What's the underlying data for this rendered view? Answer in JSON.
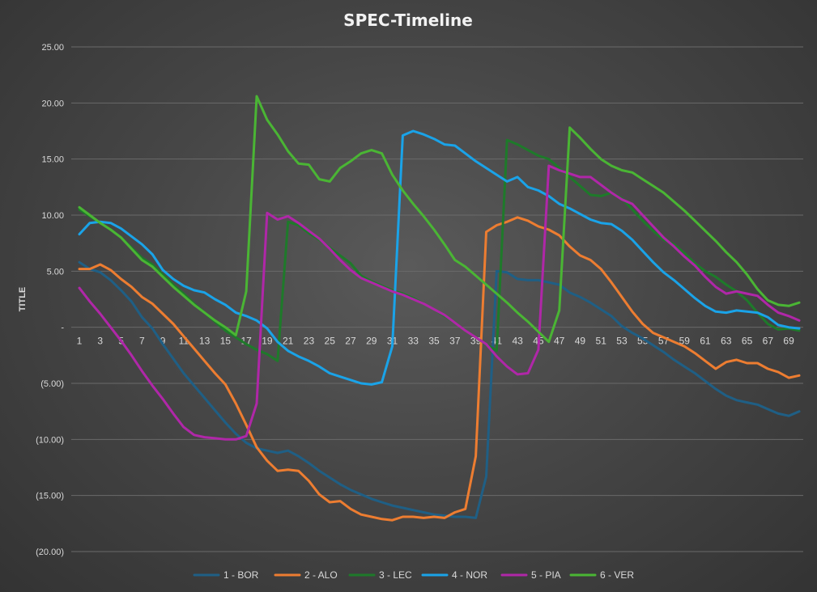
{
  "chart_data": {
    "type": "line",
    "title": "SPEC-Timeline",
    "ylabel": "TITLE",
    "xlabel": "",
    "ylim": [
      -20,
      25
    ],
    "ytick_values": [
      25,
      20,
      15,
      10,
      5,
      0,
      -5,
      -10,
      -15,
      -20
    ],
    "ytick_labels": [
      "25.00",
      "20.00",
      "15.00",
      "10.00",
      "5.00",
      "-",
      "(5.00)",
      "(10.00)",
      "(15.00)",
      "(20.00)"
    ],
    "x": [
      1,
      2,
      3,
      4,
      5,
      6,
      7,
      8,
      9,
      10,
      11,
      12,
      13,
      14,
      15,
      16,
      17,
      18,
      19,
      20,
      21,
      22,
      23,
      24,
      25,
      26,
      27,
      28,
      29,
      30,
      31,
      32,
      33,
      34,
      35,
      36,
      37,
      38,
      39,
      40,
      41,
      42,
      43,
      44,
      45,
      46,
      47,
      48,
      49,
      50,
      51,
      52,
      53,
      54,
      55,
      56,
      57,
      58,
      59,
      60,
      61,
      62,
      63,
      64,
      65,
      66,
      67,
      68,
      69,
      70
    ],
    "xtick_labels": [
      "1",
      "3",
      "5",
      "7",
      "9",
      "11",
      "13",
      "15",
      "17",
      "19",
      "21",
      "23",
      "25",
      "27",
      "29",
      "31",
      "33",
      "35",
      "37",
      "39",
      "41",
      "43",
      "45",
      "47",
      "49",
      "51",
      "53",
      "55",
      "57",
      "59",
      "61",
      "63",
      "65",
      "67",
      "69"
    ],
    "grid": true,
    "legend_position": "bottom",
    "series": [
      {
        "name": "1 - BOR",
        "color": "#1f5f85",
        "values": [
          5.8,
          5.2,
          4.9,
          4.2,
          3.3,
          2.3,
          0.9,
          -0.1,
          -1.5,
          -2.8,
          -4.1,
          -5.2,
          -6.3,
          -7.4,
          -8.5,
          -9.5,
          -10.3,
          -10.8,
          -11.0,
          -11.2,
          -11.0,
          -11.5,
          -12.1,
          -12.8,
          -13.4,
          -14.0,
          -14.5,
          -14.9,
          -15.3,
          -15.6,
          -15.9,
          -16.1,
          -16.3,
          -16.5,
          -16.7,
          -16.8,
          -16.9,
          -16.9,
          -17.0,
          -13.3,
          5.0,
          4.9,
          4.3,
          4.2,
          4.2,
          4.0,
          3.8,
          3.1,
          2.7,
          2.2,
          1.6,
          1.0,
          0.1,
          -0.5,
          -1.0,
          -1.6,
          -2.2,
          -2.9,
          -3.5,
          -4.1,
          -4.8,
          -5.5,
          -6.1,
          -6.5,
          -6.7,
          -6.9,
          -7.3,
          -7.7,
          -7.9,
          -7.5
        ]
      },
      {
        "name": "2 - ALO",
        "color": "#ed7d31",
        "values": [
          5.2,
          5.2,
          5.6,
          5.1,
          4.3,
          3.6,
          2.7,
          2.1,
          1.2,
          0.3,
          -0.8,
          -1.9,
          -3.0,
          -4.1,
          -5.1,
          -6.8,
          -8.7,
          -10.7,
          -11.9,
          -12.8,
          -12.7,
          -12.8,
          -13.7,
          -14.9,
          -15.6,
          -15.5,
          -16.2,
          -16.7,
          -16.9,
          -17.1,
          -17.2,
          -16.9,
          -16.9,
          -17.0,
          -16.9,
          -17.0,
          -16.5,
          -16.2,
          -11.5,
          8.5,
          9.1,
          9.4,
          9.8,
          9.5,
          9.0,
          8.7,
          8.2,
          7.2,
          6.4,
          6.0,
          5.2,
          4.0,
          2.7,
          1.4,
          0.3,
          -0.5,
          -0.9,
          -1.3,
          -1.7,
          -2.3,
          -3.0,
          -3.7,
          -3.1,
          -2.9,
          -3.2,
          -3.2,
          -3.7,
          -4.0,
          -4.5,
          -4.3
        ]
      },
      {
        "name": "3 - LEC",
        "color": "#1e7a2a",
        "values": [
          10.5,
          9.9,
          9.3,
          8.7,
          8.0,
          7.1,
          6.2,
          5.6,
          4.7,
          3.8,
          3.0,
          2.1,
          1.3,
          0.5,
          -0.3,
          -0.9,
          -1.5,
          -2.0,
          -2.4,
          -3.0,
          9.4,
          9.1,
          8.4,
          7.8,
          7.1,
          6.4,
          5.7,
          4.6,
          4.1,
          3.7,
          3.3,
          3.0,
          2.6,
          2.1,
          1.6,
          1.0,
          0.4,
          -0.3,
          -0.9,
          -1.5,
          -2.1,
          16.7,
          16.3,
          15.8,
          15.3,
          15.0,
          14.2,
          13.4,
          12.6,
          11.8,
          11.7,
          12.0,
          11.5,
          10.5,
          9.5,
          8.6,
          7.8,
          7.4,
          6.6,
          5.7,
          5.0,
          4.5,
          3.8,
          3.2,
          2.4,
          1.3,
          0.3,
          -0.2,
          -0.1,
          -0.3
        ]
      },
      {
        "name": "4 - NOR",
        "color": "#1aa3e8",
        "values": [
          8.3,
          9.3,
          9.4,
          9.3,
          8.8,
          8.1,
          7.4,
          6.5,
          5.1,
          4.3,
          3.7,
          3.3,
          3.1,
          2.5,
          2.0,
          1.3,
          1.0,
          0.6,
          -0.1,
          -1.3,
          -2.1,
          -2.6,
          -3.0,
          -3.5,
          -4.1,
          -4.4,
          -4.7,
          -5.0,
          -5.1,
          -4.9,
          -1.7,
          17.1,
          17.5,
          17.2,
          16.8,
          16.3,
          16.2,
          15.5,
          14.8,
          14.2,
          13.6,
          13.0,
          13.4,
          12.5,
          12.2,
          11.7,
          11.0,
          10.6,
          10.1,
          9.6,
          9.3,
          9.2,
          8.6,
          7.8,
          6.8,
          5.8,
          4.9,
          4.2,
          3.4,
          2.6,
          1.9,
          1.4,
          1.3,
          1.5,
          1.4,
          1.3,
          0.9,
          0.2,
          0.0,
          -0.1
        ]
      },
      {
        "name": "5 - PIA",
        "color": "#b027a8",
        "values": [
          3.5,
          2.3,
          1.2,
          0.0,
          -1.2,
          -2.5,
          -3.9,
          -5.2,
          -6.4,
          -7.7,
          -8.9,
          -9.6,
          -9.8,
          -9.9,
          -10.0,
          -10.0,
          -9.7,
          -6.8,
          10.2,
          9.6,
          9.9,
          9.3,
          8.6,
          7.9,
          7.0,
          6.0,
          5.1,
          4.4,
          4.0,
          3.6,
          3.2,
          2.9,
          2.5,
          2.1,
          1.6,
          1.1,
          0.4,
          -0.3,
          -0.9,
          -1.5,
          -2.6,
          -3.5,
          -4.2,
          -4.1,
          -2.0,
          14.4,
          14.0,
          13.7,
          13.4,
          13.4,
          12.7,
          12.0,
          11.4,
          11.0,
          10.0,
          9.0,
          8.0,
          7.2,
          6.3,
          5.5,
          4.5,
          3.6,
          3.0,
          3.2,
          3.0,
          2.8,
          2.0,
          1.3,
          1.0,
          0.6
        ]
      },
      {
        "name": "6 - VER",
        "color": "#4ab534",
        "values": [
          10.7,
          10.0,
          9.3,
          8.7,
          8.0,
          7.0,
          6.0,
          5.4,
          4.5,
          3.6,
          2.8,
          2.0,
          1.3,
          0.6,
          0.0,
          -0.7,
          3.2,
          20.6,
          18.5,
          17.2,
          15.7,
          14.6,
          14.5,
          13.2,
          13.0,
          14.2,
          14.8,
          15.5,
          15.8,
          15.5,
          13.6,
          12.2,
          11.0,
          9.9,
          8.7,
          7.4,
          6.0,
          5.4,
          4.6,
          3.8,
          3.0,
          2.2,
          1.3,
          0.5,
          -0.4,
          -1.3,
          1.5,
          17.8,
          16.9,
          15.9,
          15.0,
          14.4,
          14.0,
          13.8,
          13.2,
          12.6,
          12.0,
          11.2,
          10.4,
          9.5,
          8.6,
          7.7,
          6.7,
          5.8,
          4.7,
          3.4,
          2.4,
          2.0,
          1.9,
          2.2
        ]
      }
    ]
  }
}
